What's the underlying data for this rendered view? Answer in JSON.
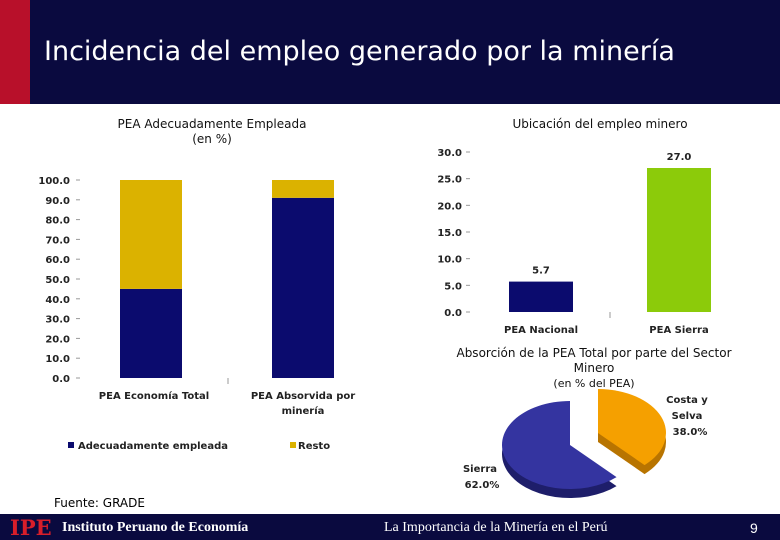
{
  "title": "Incidencia del empleo generado por la minería",
  "source": "Fuente: GRADE",
  "footer": {
    "logo": "IPE",
    "org": "Instituto Peruano de Economía",
    "text": "La Importancia de la Minería en el Perú",
    "page": "9"
  },
  "colors": {
    "navy": "#0b0b6e",
    "gold": "#dbb200",
    "green": "#8ccb0a",
    "orange": "#f5a000",
    "purple": "#3434a0",
    "title_bg": "#0a0a3f",
    "accent": "#b8102a"
  },
  "chart_data": [
    {
      "type": "bar",
      "stacked": true,
      "title": "PEA Adecuadamente Empleada",
      "subtitle": "(en %)",
      "categories": [
        "PEA Economía Total",
        "PEA Absorvida por minería"
      ],
      "series": [
        {
          "name": "Adecuadamente empleada",
          "values": [
            45.0,
            91.0
          ]
        },
        {
          "name": "Resto",
          "values": [
            55.0,
            9.0
          ]
        }
      ],
      "ylim": [
        0,
        100
      ],
      "yticks": [
        "0.0",
        "10.0",
        "20.0",
        "30.0",
        "40.0",
        "50.0",
        "60.0",
        "70.0",
        "80.0",
        "90.0",
        "100.0"
      ],
      "legend": "bottom"
    },
    {
      "type": "bar",
      "title": "Ubicación del empleo minero",
      "categories": [
        "PEA Nacional",
        "PEA Sierra"
      ],
      "values": [
        5.7,
        27.0
      ],
      "labels": [
        "5.7",
        "27.0"
      ],
      "ylim": [
        0,
        30
      ],
      "yticks": [
        "0.0",
        "5.0",
        "10.0",
        "15.0",
        "20.0",
        "25.0",
        "30.0"
      ]
    },
    {
      "type": "pie",
      "title": "Absorción de la PEA Total por parte del Sector Minero",
      "subtitle": "(en % del PEA)",
      "slices": [
        {
          "label": "Sierra",
          "value": 62.0,
          "display": "62.0%"
        },
        {
          "label": "Costa y Selva",
          "value": 38.0,
          "display": "38.0%"
        }
      ]
    }
  ]
}
